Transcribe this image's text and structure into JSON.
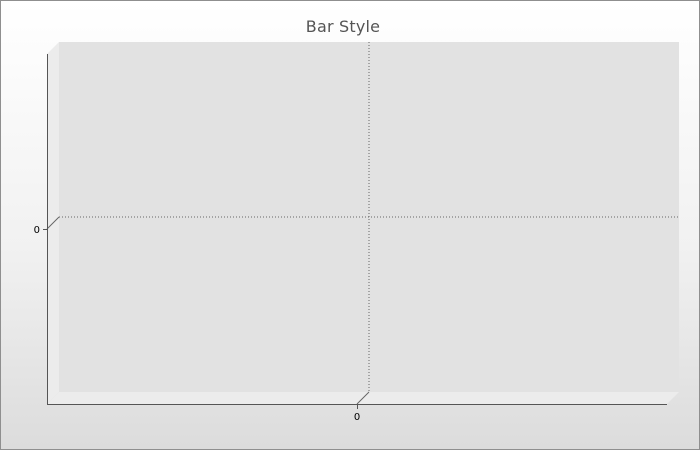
{
  "chart_data": {
    "type": "bar",
    "title": "Bar Style",
    "xlabel": "",
    "ylabel": "",
    "style": "3d",
    "grid": true,
    "plot_color": "#e2e2e2",
    "wall_color": "#ececec",
    "axis_color": "#555555",
    "grid_color": "#666666",
    "x_ticks": [
      "0"
    ],
    "y_ticks": [
      "0"
    ],
    "categories": [],
    "series": []
  }
}
